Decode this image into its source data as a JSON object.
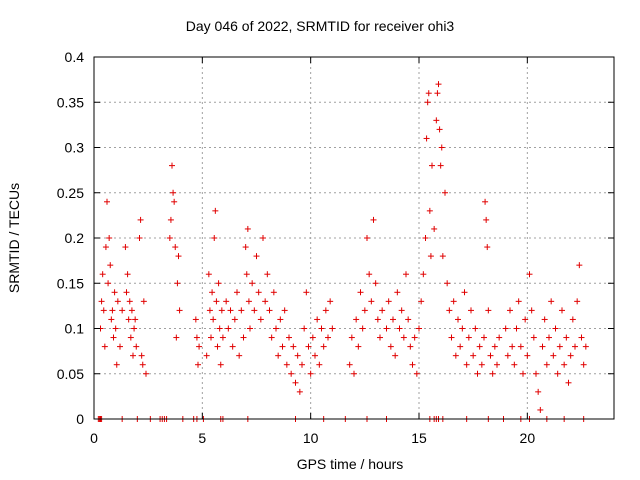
{
  "chart_data": {
    "type": "scatter",
    "title": "Day 046 of 2022, SRMTID for receiver ohi3",
    "xlabel": "GPS time / hours",
    "ylabel": "SRMTID / TECUs",
    "xlim": [
      0,
      24
    ],
    "ylim": [
      0,
      0.4
    ],
    "xticks": [
      0,
      5,
      10,
      15,
      20
    ],
    "yticks": [
      0,
      0.05,
      0.1,
      0.15,
      0.2,
      0.25,
      0.3,
      0.35,
      0.4
    ],
    "grid": true,
    "marker": "plus",
    "color": "#e00000",
    "series": [
      {
        "name": "SRMTID",
        "points": [
          [
            0.3,
            0.1
          ],
          [
            0.35,
            0.13
          ],
          [
            0.4,
            0.16
          ],
          [
            0.45,
            0.12
          ],
          [
            0.5,
            0.08
          ],
          [
            0.55,
            0.19
          ],
          [
            0.6,
            0.24
          ],
          [
            0.65,
            0.15
          ],
          [
            0.7,
            0.2
          ],
          [
            0.75,
            0.17
          ],
          [
            0.8,
            0.11
          ],
          [
            0.85,
            0.12
          ],
          [
            0.9,
            0.09
          ],
          [
            0.95,
            0.14
          ],
          [
            1.0,
            0.1
          ],
          [
            1.05,
            0.06
          ],
          [
            1.1,
            0.13
          ],
          [
            1.2,
            0.08
          ],
          [
            1.3,
            0.12
          ],
          [
            1.45,
            0.19
          ],
          [
            1.5,
            0.14
          ],
          [
            1.55,
            0.16
          ],
          [
            1.6,
            0.11
          ],
          [
            1.65,
            0.13
          ],
          [
            1.7,
            0.09
          ],
          [
            1.75,
            0.12
          ],
          [
            1.8,
            0.07
          ],
          [
            1.85,
            0.1
          ],
          [
            1.9,
            0.11
          ],
          [
            1.95,
            0.08
          ],
          [
            2.1,
            0.2
          ],
          [
            2.15,
            0.22
          ],
          [
            2.2,
            0.07
          ],
          [
            2.25,
            0.06
          ],
          [
            2.3,
            0.13
          ],
          [
            2.4,
            0.05
          ],
          [
            3.5,
            0.2
          ],
          [
            3.55,
            0.22
          ],
          [
            3.6,
            0.28
          ],
          [
            3.65,
            0.25
          ],
          [
            3.7,
            0.24
          ],
          [
            3.75,
            0.19
          ],
          [
            3.8,
            0.09
          ],
          [
            3.85,
            0.15
          ],
          [
            3.9,
            0.18
          ],
          [
            3.95,
            0.12
          ],
          [
            4.7,
            0.11
          ],
          [
            4.75,
            0.09
          ],
          [
            4.8,
            0.06
          ],
          [
            4.85,
            0.08
          ],
          [
            5.2,
            0.07
          ],
          [
            5.3,
            0.16
          ],
          [
            5.35,
            0.12
          ],
          [
            5.4,
            0.09
          ],
          [
            5.45,
            0.14
          ],
          [
            5.5,
            0.11
          ],
          [
            5.55,
            0.2
          ],
          [
            5.6,
            0.23
          ],
          [
            5.65,
            0.13
          ],
          [
            5.7,
            0.08
          ],
          [
            5.75,
            0.15
          ],
          [
            5.8,
            0.1
          ],
          [
            5.85,
            0.06
          ],
          [
            5.9,
            0.12
          ],
          [
            5.95,
            0.09
          ],
          [
            6.1,
            0.13
          ],
          [
            6.2,
            0.1
          ],
          [
            6.3,
            0.12
          ],
          [
            6.4,
            0.08
          ],
          [
            6.5,
            0.11
          ],
          [
            6.6,
            0.14
          ],
          [
            6.7,
            0.07
          ],
          [
            6.8,
            0.12
          ],
          [
            6.9,
            0.09
          ],
          [
            7.0,
            0.19
          ],
          [
            7.05,
            0.16
          ],
          [
            7.1,
            0.21
          ],
          [
            7.15,
            0.13
          ],
          [
            7.2,
            0.1
          ],
          [
            7.3,
            0.15
          ],
          [
            7.4,
            0.12
          ],
          [
            7.5,
            0.18
          ],
          [
            7.6,
            0.14
          ],
          [
            7.7,
            0.11
          ],
          [
            7.8,
            0.2
          ],
          [
            7.9,
            0.13
          ],
          [
            8.0,
            0.16
          ],
          [
            8.1,
            0.12
          ],
          [
            8.2,
            0.09
          ],
          [
            8.3,
            0.14
          ],
          [
            8.4,
            0.1
          ],
          [
            8.5,
            0.07
          ],
          [
            8.6,
            0.11
          ],
          [
            8.7,
            0.08
          ],
          [
            8.8,
            0.12
          ],
          [
            8.9,
            0.06
          ],
          [
            9.0,
            0.09
          ],
          [
            9.1,
            0.05
          ],
          [
            9.2,
            0.08
          ],
          [
            9.3,
            0.04
          ],
          [
            9.4,
            0.07
          ],
          [
            9.5,
            0.03
          ],
          [
            9.6,
            0.06
          ],
          [
            9.7,
            0.1
          ],
          [
            9.8,
            0.14
          ],
          [
            9.9,
            0.08
          ],
          [
            10.0,
            0.05
          ],
          [
            10.1,
            0.09
          ],
          [
            10.2,
            0.07
          ],
          [
            10.3,
            0.11
          ],
          [
            10.4,
            0.06
          ],
          [
            10.5,
            0.1
          ],
          [
            10.6,
            0.08
          ],
          [
            10.7,
            0.12
          ],
          [
            10.8,
            0.09
          ],
          [
            10.9,
            0.13
          ],
          [
            11.0,
            0.1
          ],
          [
            11.8,
            0.06
          ],
          [
            11.9,
            0.09
          ],
          [
            12.0,
            0.05
          ],
          [
            12.1,
            0.11
          ],
          [
            12.2,
            0.08
          ],
          [
            12.3,
            0.14
          ],
          [
            12.4,
            0.1
          ],
          [
            12.5,
            0.12
          ],
          [
            12.6,
            0.2
          ],
          [
            12.7,
            0.16
          ],
          [
            12.8,
            0.13
          ],
          [
            12.9,
            0.22
          ],
          [
            13.0,
            0.15
          ],
          [
            13.1,
            0.11
          ],
          [
            13.2,
            0.09
          ],
          [
            13.3,
            0.12
          ],
          [
            13.5,
            0.1
          ],
          [
            13.6,
            0.13
          ],
          [
            13.7,
            0.08
          ],
          [
            13.8,
            0.11
          ],
          [
            13.9,
            0.07
          ],
          [
            14.0,
            0.14
          ],
          [
            14.1,
            0.1
          ],
          [
            14.2,
            0.12
          ],
          [
            14.3,
            0.09
          ],
          [
            14.4,
            0.16
          ],
          [
            14.5,
            0.11
          ],
          [
            14.6,
            0.08
          ],
          [
            14.7,
            0.06
          ],
          [
            14.8,
            0.09
          ],
          [
            14.9,
            0.05
          ],
          [
            15.0,
            0.1
          ],
          [
            15.1,
            0.13
          ],
          [
            15.2,
            0.16
          ],
          [
            15.3,
            0.2
          ],
          [
            15.35,
            0.31
          ],
          [
            15.4,
            0.35
          ],
          [
            15.45,
            0.36
          ],
          [
            15.5,
            0.23
          ],
          [
            15.55,
            0.18
          ],
          [
            15.6,
            0.28
          ],
          [
            15.7,
            0.21
          ],
          [
            15.8,
            0.33
          ],
          [
            15.85,
            0.36
          ],
          [
            15.9,
            0.37
          ],
          [
            15.95,
            0.32
          ],
          [
            16.0,
            0.28
          ],
          [
            16.05,
            0.3
          ],
          [
            16.1,
            0.18
          ],
          [
            16.2,
            0.25
          ],
          [
            16.3,
            0.15
          ],
          [
            16.4,
            0.12
          ],
          [
            16.5,
            0.09
          ],
          [
            16.6,
            0.13
          ],
          [
            16.7,
            0.07
          ],
          [
            16.8,
            0.11
          ],
          [
            16.9,
            0.08
          ],
          [
            17.0,
            0.1
          ],
          [
            17.1,
            0.14
          ],
          [
            17.2,
            0.06
          ],
          [
            17.3,
            0.09
          ],
          [
            17.4,
            0.12
          ],
          [
            17.5,
            0.07
          ],
          [
            17.6,
            0.1
          ],
          [
            17.7,
            0.05
          ],
          [
            17.8,
            0.08
          ],
          [
            17.9,
            0.06
          ],
          [
            18.0,
            0.09
          ],
          [
            18.05,
            0.24
          ],
          [
            18.1,
            0.22
          ],
          [
            18.15,
            0.19
          ],
          [
            18.2,
            0.12
          ],
          [
            18.3,
            0.07
          ],
          [
            18.4,
            0.05
          ],
          [
            18.5,
            0.08
          ],
          [
            18.6,
            0.06
          ],
          [
            18.7,
            0.09
          ],
          [
            19.0,
            0.1
          ],
          [
            19.1,
            0.07
          ],
          [
            19.2,
            0.12
          ],
          [
            19.3,
            0.08
          ],
          [
            19.4,
            0.06
          ],
          [
            19.5,
            0.1
          ],
          [
            19.6,
            0.13
          ],
          [
            19.7,
            0.08
          ],
          [
            19.8,
            0.05
          ],
          [
            19.9,
            0.11
          ],
          [
            20.0,
            0.07
          ],
          [
            20.1,
            0.16
          ],
          [
            20.2,
            0.12
          ],
          [
            20.3,
            0.09
          ],
          [
            20.4,
            0.05
          ],
          [
            20.5,
            0.03
          ],
          [
            20.6,
            0.01
          ],
          [
            20.7,
            0.08
          ],
          [
            20.8,
            0.11
          ],
          [
            20.9,
            0.06
          ],
          [
            21.0,
            0.09
          ],
          [
            21.1,
            0.13
          ],
          [
            21.2,
            0.07
          ],
          [
            21.3,
            0.1
          ],
          [
            21.4,
            0.05
          ],
          [
            21.5,
            0.08
          ],
          [
            21.6,
            0.12
          ],
          [
            21.7,
            0.06
          ],
          [
            21.8,
            0.09
          ],
          [
            21.9,
            0.04
          ],
          [
            22.0,
            0.07
          ],
          [
            22.1,
            0.11
          ],
          [
            22.2,
            0.08
          ],
          [
            22.3,
            0.13
          ],
          [
            22.4,
            0.17
          ],
          [
            22.5,
            0.09
          ],
          [
            22.6,
            0.06
          ],
          [
            22.7,
            0.08
          ],
          [
            0.2,
            0.0
          ],
          [
            0.25,
            0.0
          ],
          [
            0.3,
            0.0
          ],
          [
            0.35,
            0.0
          ],
          [
            1.3,
            0.0
          ],
          [
            2.0,
            0.0
          ],
          [
            2.6,
            0.0
          ],
          [
            3.05,
            0.0
          ],
          [
            3.15,
            0.0
          ],
          [
            3.25,
            0.0
          ],
          [
            3.35,
            0.0
          ],
          [
            4.1,
            0.0
          ],
          [
            4.6,
            0.0
          ],
          [
            4.75,
            0.0
          ],
          [
            5.05,
            0.0
          ],
          [
            5.85,
            0.0
          ],
          [
            5.95,
            0.0
          ],
          [
            7.1,
            0.0
          ],
          [
            9.3,
            0.0
          ],
          [
            10.6,
            0.0
          ],
          [
            11.6,
            0.0
          ],
          [
            12.6,
            0.0
          ],
          [
            13.5,
            0.0
          ],
          [
            15.5,
            0.0
          ],
          [
            15.7,
            0.0
          ],
          [
            15.8,
            0.0
          ],
          [
            15.9,
            0.0
          ],
          [
            16.1,
            0.0
          ],
          [
            17.2,
            0.0
          ],
          [
            18.2,
            0.0
          ],
          [
            18.9,
            0.0
          ],
          [
            19.7,
            0.0
          ],
          [
            20.1,
            0.0
          ],
          [
            20.9,
            0.0
          ],
          [
            21.7,
            0.0
          ],
          [
            22.6,
            0.0
          ]
        ]
      }
    ]
  }
}
